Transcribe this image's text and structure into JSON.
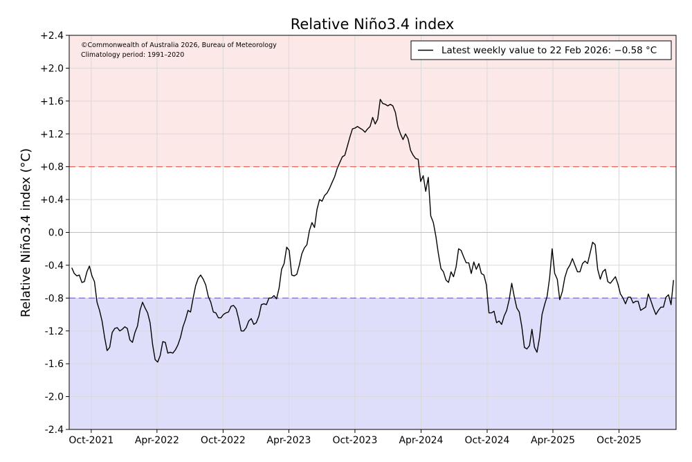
{
  "chart_data": {
    "type": "line",
    "title": "Relative Niño3.4 index",
    "xlabel": "",
    "ylabel": "Relative Niño3.4 index (°C)",
    "ylim": [
      -2.4,
      2.4
    ],
    "yticks": [
      {
        "value": 2.4,
        "label": "+2.4"
      },
      {
        "value": 2.0,
        "label": "+2.0"
      },
      {
        "value": 1.6,
        "label": "+1.6"
      },
      {
        "value": 1.2,
        "label": "+1.2"
      },
      {
        "value": 0.8,
        "label": "+0.8"
      },
      {
        "value": 0.4,
        "label": "+0.4"
      },
      {
        "value": 0.0,
        "label": "0.0"
      },
      {
        "value": -0.4,
        "label": "-0.4"
      },
      {
        "value": -0.8,
        "label": "-0.8"
      },
      {
        "value": -1.2,
        "label": "-1.2"
      },
      {
        "value": -1.6,
        "label": "-1.6"
      },
      {
        "value": -2.0,
        "label": "-2.0"
      },
      {
        "value": -2.4,
        "label": "-2.4"
      }
    ],
    "xlim": [
      "2021-08-01",
      "2026-03-08"
    ],
    "xticks": [
      {
        "date": "2021-10-01",
        "label": "Oct-2021"
      },
      {
        "date": "2022-04-01",
        "label": "Apr-2022"
      },
      {
        "date": "2022-10-01",
        "label": "Oct-2022"
      },
      {
        "date": "2023-04-01",
        "label": "Apr-2023"
      },
      {
        "date": "2023-10-01",
        "label": "Oct-2023"
      },
      {
        "date": "2024-04-01",
        "label": "Apr-2024"
      },
      {
        "date": "2024-10-01",
        "label": "Oct-2024"
      },
      {
        "date": "2025-04-01",
        "label": "Apr-2025"
      },
      {
        "date": "2025-10-01",
        "label": "Oct-2025"
      }
    ],
    "thresholds": {
      "el_nino": {
        "value": 0.8,
        "color": "#e8574a",
        "fill": "#fde8e8"
      },
      "la_nina": {
        "value": -0.8,
        "color": "#6b63c4",
        "fill": "#dedefa"
      }
    },
    "grid": true,
    "legend_position": "top-right",
    "legend": "Latest weekly value to 22 Feb 2026: −0.58 °C",
    "annotation": "©Commonwealth of Australia 2026, Bureau of Meteorology\nClimatology period: 1991–2020",
    "series": [
      {
        "color": "#000000",
        "points": [
          [
            "2021-08-08",
            -0.43
          ],
          [
            "2021-08-15",
            -0.5
          ],
          [
            "2021-08-22",
            -0.53
          ],
          [
            "2021-08-29",
            -0.52
          ],
          [
            "2021-09-05",
            -0.61
          ],
          [
            "2021-09-12",
            -0.6
          ],
          [
            "2021-09-19",
            -0.48
          ],
          [
            "2021-09-26",
            -0.41
          ],
          [
            "2021-10-03",
            -0.53
          ],
          [
            "2021-10-10",
            -0.6
          ],
          [
            "2021-10-17",
            -0.85
          ],
          [
            "2021-10-24",
            -0.95
          ],
          [
            "2021-10-31",
            -1.08
          ],
          [
            "2021-11-07",
            -1.28
          ],
          [
            "2021-11-14",
            -1.44
          ],
          [
            "2021-11-21",
            -1.4
          ],
          [
            "2021-11-28",
            -1.22
          ],
          [
            "2021-12-05",
            -1.17
          ],
          [
            "2021-12-12",
            -1.16
          ],
          [
            "2021-12-19",
            -1.2
          ],
          [
            "2021-12-26",
            -1.18
          ],
          [
            "2022-01-02",
            -1.15
          ],
          [
            "2022-01-09",
            -1.17
          ],
          [
            "2022-01-16",
            -1.31
          ],
          [
            "2022-01-23",
            -1.34
          ],
          [
            "2022-01-30",
            -1.22
          ],
          [
            "2022-02-06",
            -1.14
          ],
          [
            "2022-02-13",
            -0.95
          ],
          [
            "2022-02-20",
            -0.85
          ],
          [
            "2022-02-27",
            -0.92
          ],
          [
            "2022-03-06",
            -0.98
          ],
          [
            "2022-03-13",
            -1.1
          ],
          [
            "2022-03-20",
            -1.37
          ],
          [
            "2022-03-27",
            -1.55
          ],
          [
            "2022-04-03",
            -1.58
          ],
          [
            "2022-04-10",
            -1.5
          ],
          [
            "2022-04-17",
            -1.33
          ],
          [
            "2022-04-24",
            -1.34
          ],
          [
            "2022-05-01",
            -1.47
          ],
          [
            "2022-05-08",
            -1.46
          ],
          [
            "2022-05-15",
            -1.47
          ],
          [
            "2022-05-22",
            -1.43
          ],
          [
            "2022-05-29",
            -1.37
          ],
          [
            "2022-06-05",
            -1.28
          ],
          [
            "2022-06-12",
            -1.15
          ],
          [
            "2022-06-19",
            -1.06
          ],
          [
            "2022-06-26",
            -0.95
          ],
          [
            "2022-07-03",
            -0.97
          ],
          [
            "2022-07-10",
            -0.8
          ],
          [
            "2022-07-17",
            -0.65
          ],
          [
            "2022-07-24",
            -0.56
          ],
          [
            "2022-07-31",
            -0.52
          ],
          [
            "2022-08-07",
            -0.57
          ],
          [
            "2022-08-14",
            -0.64
          ],
          [
            "2022-08-21",
            -0.78
          ],
          [
            "2022-08-28",
            -0.85
          ],
          [
            "2022-09-04",
            -0.97
          ],
          [
            "2022-09-11",
            -0.98
          ],
          [
            "2022-09-18",
            -1.04
          ],
          [
            "2022-09-25",
            -1.04
          ],
          [
            "2022-10-02",
            -1.0
          ],
          [
            "2022-10-09",
            -0.98
          ],
          [
            "2022-10-16",
            -0.97
          ],
          [
            "2022-10-23",
            -0.9
          ],
          [
            "2022-10-30",
            -0.89
          ],
          [
            "2022-11-06",
            -0.93
          ],
          [
            "2022-11-13",
            -1.05
          ],
          [
            "2022-11-20",
            -1.2
          ],
          [
            "2022-11-27",
            -1.2
          ],
          [
            "2022-12-04",
            -1.16
          ],
          [
            "2022-12-11",
            -1.08
          ],
          [
            "2022-12-18",
            -1.05
          ],
          [
            "2022-12-25",
            -1.12
          ],
          [
            "2023-01-01",
            -1.1
          ],
          [
            "2023-01-08",
            -1.02
          ],
          [
            "2023-01-15",
            -0.88
          ],
          [
            "2023-01-22",
            -0.87
          ],
          [
            "2023-01-29",
            -0.88
          ],
          [
            "2023-02-05",
            -0.8
          ],
          [
            "2023-02-12",
            -0.8
          ],
          [
            "2023-02-19",
            -0.77
          ],
          [
            "2023-02-26",
            -0.81
          ],
          [
            "2023-03-05",
            -0.68
          ],
          [
            "2023-03-12",
            -0.45
          ],
          [
            "2023-03-19",
            -0.38
          ],
          [
            "2023-03-26",
            -0.18
          ],
          [
            "2023-04-02",
            -0.22
          ],
          [
            "2023-04-09",
            -0.52
          ],
          [
            "2023-04-16",
            -0.53
          ],
          [
            "2023-04-23",
            -0.51
          ],
          [
            "2023-04-30",
            -0.4
          ],
          [
            "2023-05-07",
            -0.26
          ],
          [
            "2023-05-14",
            -0.19
          ],
          [
            "2023-05-21",
            -0.15
          ],
          [
            "2023-05-28",
            0.02
          ],
          [
            "2023-06-04",
            0.12
          ],
          [
            "2023-06-11",
            0.06
          ],
          [
            "2023-06-18",
            0.28
          ],
          [
            "2023-06-25",
            0.4
          ],
          [
            "2023-07-02",
            0.38
          ],
          [
            "2023-07-09",
            0.45
          ],
          [
            "2023-07-16",
            0.48
          ],
          [
            "2023-07-23",
            0.54
          ],
          [
            "2023-07-30",
            0.61
          ],
          [
            "2023-08-06",
            0.68
          ],
          [
            "2023-08-13",
            0.78
          ],
          [
            "2023-08-20",
            0.85
          ],
          [
            "2023-08-27",
            0.92
          ],
          [
            "2023-09-03",
            0.94
          ],
          [
            "2023-09-10",
            1.05
          ],
          [
            "2023-09-17",
            1.16
          ],
          [
            "2023-09-24",
            1.26
          ],
          [
            "2023-10-01",
            1.27
          ],
          [
            "2023-10-08",
            1.29
          ],
          [
            "2023-10-15",
            1.27
          ],
          [
            "2023-10-22",
            1.25
          ],
          [
            "2023-10-29",
            1.22
          ],
          [
            "2023-11-05",
            1.26
          ],
          [
            "2023-11-12",
            1.29
          ],
          [
            "2023-11-19",
            1.4
          ],
          [
            "2023-11-26",
            1.32
          ],
          [
            "2023-12-03",
            1.38
          ],
          [
            "2023-12-10",
            1.62
          ],
          [
            "2023-12-17",
            1.57
          ],
          [
            "2023-12-24",
            1.56
          ],
          [
            "2023-12-31",
            1.54
          ],
          [
            "2024-01-07",
            1.56
          ],
          [
            "2024-01-14",
            1.54
          ],
          [
            "2024-01-21",
            1.46
          ],
          [
            "2024-01-28",
            1.29
          ],
          [
            "2024-02-04",
            1.2
          ],
          [
            "2024-02-11",
            1.13
          ],
          [
            "2024-02-18",
            1.2
          ],
          [
            "2024-02-25",
            1.14
          ],
          [
            "2024-03-03",
            1.0
          ],
          [
            "2024-03-10",
            0.94
          ],
          [
            "2024-03-17",
            0.9
          ],
          [
            "2024-03-24",
            0.89
          ],
          [
            "2024-03-31",
            0.62
          ],
          [
            "2024-04-07",
            0.69
          ],
          [
            "2024-04-14",
            0.5
          ],
          [
            "2024-04-21",
            0.67
          ],
          [
            "2024-04-28",
            0.2
          ],
          [
            "2024-05-05",
            0.12
          ],
          [
            "2024-05-12",
            -0.05
          ],
          [
            "2024-05-19",
            -0.26
          ],
          [
            "2024-05-26",
            -0.44
          ],
          [
            "2024-06-02",
            -0.48
          ],
          [
            "2024-06-09",
            -0.58
          ],
          [
            "2024-06-16",
            -0.61
          ],
          [
            "2024-06-23",
            -0.48
          ],
          [
            "2024-06-30",
            -0.54
          ],
          [
            "2024-07-07",
            -0.42
          ],
          [
            "2024-07-14",
            -0.2
          ],
          [
            "2024-07-21",
            -0.22
          ],
          [
            "2024-07-28",
            -0.3
          ],
          [
            "2024-08-04",
            -0.37
          ],
          [
            "2024-08-11",
            -0.37
          ],
          [
            "2024-08-18",
            -0.5
          ],
          [
            "2024-08-25",
            -0.36
          ],
          [
            "2024-09-01",
            -0.45
          ],
          [
            "2024-09-08",
            -0.38
          ],
          [
            "2024-09-15",
            -0.5
          ],
          [
            "2024-09-22",
            -0.52
          ],
          [
            "2024-09-29",
            -0.64
          ],
          [
            "2024-10-06",
            -0.98
          ],
          [
            "2024-10-13",
            -0.98
          ],
          [
            "2024-10-20",
            -0.96
          ],
          [
            "2024-10-27",
            -1.1
          ],
          [
            "2024-11-03",
            -1.08
          ],
          [
            "2024-11-10",
            -1.12
          ],
          [
            "2024-11-17",
            -1.02
          ],
          [
            "2024-11-24",
            -0.95
          ],
          [
            "2024-12-01",
            -0.82
          ],
          [
            "2024-12-08",
            -0.62
          ],
          [
            "2024-12-15",
            -0.78
          ],
          [
            "2024-12-22",
            -0.92
          ],
          [
            "2024-12-29",
            -0.97
          ],
          [
            "2025-01-05",
            -1.15
          ],
          [
            "2025-01-12",
            -1.4
          ],
          [
            "2025-01-19",
            -1.42
          ],
          [
            "2025-01-26",
            -1.38
          ],
          [
            "2025-02-02",
            -1.18
          ],
          [
            "2025-02-09",
            -1.4
          ],
          [
            "2025-02-16",
            -1.46
          ],
          [
            "2025-02-23",
            -1.28
          ],
          [
            "2025-03-02",
            -1.0
          ],
          [
            "2025-03-09",
            -0.88
          ],
          [
            "2025-03-16",
            -0.78
          ],
          [
            "2025-03-23",
            -0.55
          ],
          [
            "2025-03-30",
            -0.2
          ],
          [
            "2025-04-06",
            -0.5
          ],
          [
            "2025-04-13",
            -0.57
          ],
          [
            "2025-04-20",
            -0.82
          ],
          [
            "2025-04-27",
            -0.72
          ],
          [
            "2025-05-04",
            -0.55
          ],
          [
            "2025-05-11",
            -0.45
          ],
          [
            "2025-05-18",
            -0.4
          ],
          [
            "2025-05-25",
            -0.32
          ],
          [
            "2025-06-01",
            -0.4
          ],
          [
            "2025-06-08",
            -0.48
          ],
          [
            "2025-06-15",
            -0.48
          ],
          [
            "2025-06-22",
            -0.38
          ],
          [
            "2025-06-29",
            -0.35
          ],
          [
            "2025-07-06",
            -0.38
          ],
          [
            "2025-07-13",
            -0.25
          ],
          [
            "2025-07-20",
            -0.12
          ],
          [
            "2025-07-27",
            -0.15
          ],
          [
            "2025-08-03",
            -0.45
          ],
          [
            "2025-08-10",
            -0.57
          ],
          [
            "2025-08-17",
            -0.48
          ],
          [
            "2025-08-24",
            -0.45
          ],
          [
            "2025-08-31",
            -0.6
          ],
          [
            "2025-09-07",
            -0.62
          ],
          [
            "2025-09-14",
            -0.58
          ],
          [
            "2025-09-21",
            -0.54
          ],
          [
            "2025-09-28",
            -0.63
          ],
          [
            "2025-10-05",
            -0.75
          ],
          [
            "2025-10-12",
            -0.8
          ],
          [
            "2025-10-19",
            -0.87
          ],
          [
            "2025-10-26",
            -0.79
          ],
          [
            "2025-11-02",
            -0.79
          ],
          [
            "2025-11-09",
            -0.86
          ],
          [
            "2025-11-16",
            -0.84
          ],
          [
            "2025-11-23",
            -0.84
          ],
          [
            "2025-11-30",
            -0.95
          ],
          [
            "2025-12-07",
            -0.93
          ],
          [
            "2025-12-14",
            -0.91
          ],
          [
            "2025-12-21",
            -0.75
          ],
          [
            "2025-12-28",
            -0.83
          ],
          [
            "2026-01-04",
            -0.92
          ],
          [
            "2026-01-11",
            -1.0
          ],
          [
            "2026-01-18",
            -0.95
          ],
          [
            "2026-01-25",
            -0.91
          ],
          [
            "2026-02-01",
            -0.91
          ],
          [
            "2026-02-08",
            -0.79
          ],
          [
            "2026-02-15",
            -0.76
          ],
          [
            "2026-02-22",
            -0.88
          ],
          [
            "2026-03-01",
            -0.58
          ]
        ]
      }
    ]
  }
}
